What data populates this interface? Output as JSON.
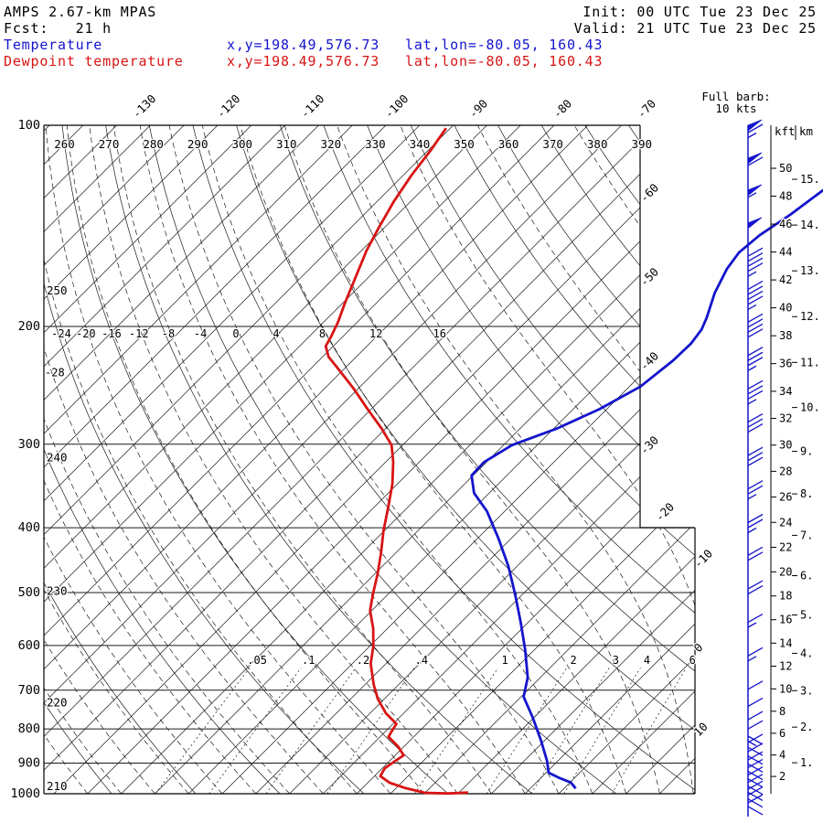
{
  "header": {
    "model": "AMPS 2.67-km MPAS",
    "fcst": "Fcst:   21 h",
    "init": "Init: 00 UTC Tue 23 Dec 25",
    "valid": "Valid: 21 UTC Tue 23 Dec 25"
  },
  "legend": {
    "temperature": {
      "label": "Temperature",
      "xy": "x,y=198.49,576.73",
      "latlon": "lat,lon=-80.05, 160.43"
    },
    "dewpoint": {
      "label": "Dewpoint temperature",
      "xy": "x,y=198.49,576.73",
      "latlon": "lat,lon=-80.05, 160.43"
    }
  },
  "barb_note": {
    "line1": "Full barb:",
    "line2": "10 kts"
  },
  "colors": {
    "temperature": "#1414cc",
    "dewpoint": "#d81414",
    "wind": "#1414cc",
    "background_lines": "#1a1a1a"
  },
  "chart_data": {
    "type": "skewt",
    "title": "AMPS 2.67-km MPAS 21-h forecast sounding",
    "pressure_ticks_hpa": [
      100,
      200,
      300,
      400,
      500,
      600,
      700,
      800,
      900,
      1000
    ],
    "isotherm_step_c": 4,
    "isotherm_labels_top_c": [
      -130,
      -120,
      -110,
      -100,
      -90,
      -80,
      -70
    ],
    "isotherm_labels_right_c": [
      -60,
      -50,
      -40,
      -30,
      -20,
      -10,
      0,
      10
    ],
    "dry_adiabat_labels_top_k": [
      260,
      270,
      280,
      290,
      300,
      310,
      320,
      330,
      340,
      350,
      360,
      370,
      380,
      390
    ],
    "dry_adiabat_labels_left_k": [
      250,
      240,
      230,
      220,
      210
    ],
    "moist_adiabat_labels_c": [
      -28,
      -24,
      -20,
      -16,
      -12,
      -8,
      -4,
      0,
      4,
      8,
      12,
      16
    ],
    "mixing_ratio_labels_gkg": [
      0.05,
      0.1,
      0.2,
      0.4,
      1,
      2,
      3,
      4,
      6
    ],
    "height_axis": {
      "left_unit": "kft",
      "right_unit": "km",
      "kft_ticks": [
        50,
        48,
        46,
        44,
        42,
        40,
        38,
        36,
        34,
        32,
        30,
        28,
        26,
        24,
        22,
        20,
        18,
        16,
        14,
        12,
        10,
        8,
        6,
        4,
        2
      ],
      "km_ticks": [
        15,
        14,
        13,
        12,
        11,
        10,
        9,
        8,
        7,
        6,
        5,
        4,
        3,
        2,
        1
      ]
    },
    "temperature_profile_hpa_c": [
      [
        125,
        -40.3
      ],
      [
        136,
        -41.3
      ],
      [
        146,
        -42.5
      ],
      [
        155,
        -42.9
      ],
      [
        164,
        -42.4
      ],
      [
        178,
        -41.0
      ],
      [
        194,
        -39.0
      ],
      [
        202,
        -38.2
      ],
      [
        212,
        -37.8
      ],
      [
        225,
        -37.9
      ],
      [
        246,
        -38.7
      ],
      [
        266,
        -40.9
      ],
      [
        284,
        -43.6
      ],
      [
        301,
        -47.0
      ],
      [
        319,
        -48.3
      ],
      [
        334,
        -48.2
      ],
      [
        355,
        -45.8
      ],
      [
        378,
        -42.1
      ],
      [
        416,
        -37.4
      ],
      [
        457,
        -33.0
      ],
      [
        503,
        -28.9
      ],
      [
        554,
        -24.9
      ],
      [
        609,
        -21.1
      ],
      [
        670,
        -17.5
      ],
      [
        716,
        -15.7
      ],
      [
        770,
        -12.1
      ],
      [
        833,
        -8.4
      ],
      [
        893,
        -5.3
      ],
      [
        930,
        -3.7
      ],
      [
        947,
        -1.8
      ],
      [
        962,
        0.1
      ],
      [
        982,
        1.4
      ]
    ],
    "dewpoint_profile_hpa_c": [
      [
        101,
        -92.5
      ],
      [
        109,
        -91.7
      ],
      [
        119,
        -91.0
      ],
      [
        130,
        -90.0
      ],
      [
        142,
        -88.7
      ],
      [
        154,
        -87.4
      ],
      [
        170,
        -85.4
      ],
      [
        184,
        -83.8
      ],
      [
        197,
        -82.3
      ],
      [
        207,
        -81.4
      ],
      [
        214,
        -80.9
      ],
      [
        222,
        -79.3
      ],
      [
        230,
        -77.1
      ],
      [
        247,
        -72.7
      ],
      [
        266,
        -68.4
      ],
      [
        284,
        -64.5
      ],
      [
        301,
        -61.3
      ],
      [
        319,
        -59.1
      ],
      [
        344,
        -56.6
      ],
      [
        373,
        -54.3
      ],
      [
        404,
        -52.1
      ],
      [
        437,
        -49.7
      ],
      [
        470,
        -47.6
      ],
      [
        503,
        -45.8
      ],
      [
        532,
        -44.2
      ],
      [
        566,
        -41.7
      ],
      [
        601,
        -39.6
      ],
      [
        639,
        -37.8
      ],
      [
        686,
        -35.0
      ],
      [
        721,
        -32.8
      ],
      [
        758,
        -30.1
      ],
      [
        786,
        -27.6
      ],
      [
        805,
        -27.3
      ],
      [
        822,
        -27.0
      ],
      [
        850,
        -24.7
      ],
      [
        876,
        -23.0
      ],
      [
        897,
        -23.4
      ],
      [
        916,
        -23.7
      ],
      [
        941,
        -23.3
      ],
      [
        963,
        -21.4
      ],
      [
        980,
        -19.0
      ],
      [
        997,
        -16.0
      ],
      [
        999,
        -13.2
      ],
      [
        996,
        -10.9
      ]
    ],
    "wind_profile_hpa_kt": [
      [
        100,
        65
      ],
      [
        112,
        60
      ],
      [
        125,
        55
      ],
      [
        140,
        50
      ],
      [
        157,
        45
      ],
      [
        176,
        45
      ],
      [
        197,
        40
      ],
      [
        221,
        35
      ],
      [
        248,
        35
      ],
      [
        278,
        30
      ],
      [
        312,
        30
      ],
      [
        350,
        25
      ],
      [
        393,
        25
      ],
      [
        440,
        20
      ],
      [
        494,
        20
      ],
      [
        554,
        15
      ],
      [
        622,
        15
      ],
      [
        698,
        10
      ],
      [
        740,
        10
      ],
      [
        775,
        12
      ],
      [
        800,
        10
      ],
      [
        820,
        15
      ],
      [
        838,
        10
      ],
      [
        852,
        14
      ],
      [
        865,
        10
      ],
      [
        878,
        12
      ],
      [
        890,
        10
      ],
      [
        902,
        14
      ],
      [
        914,
        10
      ],
      [
        926,
        12
      ],
      [
        938,
        14
      ],
      [
        950,
        10
      ],
      [
        962,
        12
      ],
      [
        974,
        14
      ],
      [
        985,
        10
      ],
      [
        995,
        12
      ],
      [
        1005,
        10
      ],
      [
        1018,
        14
      ],
      [
        1032,
        10
      ],
      [
        1045,
        12
      ]
    ]
  }
}
